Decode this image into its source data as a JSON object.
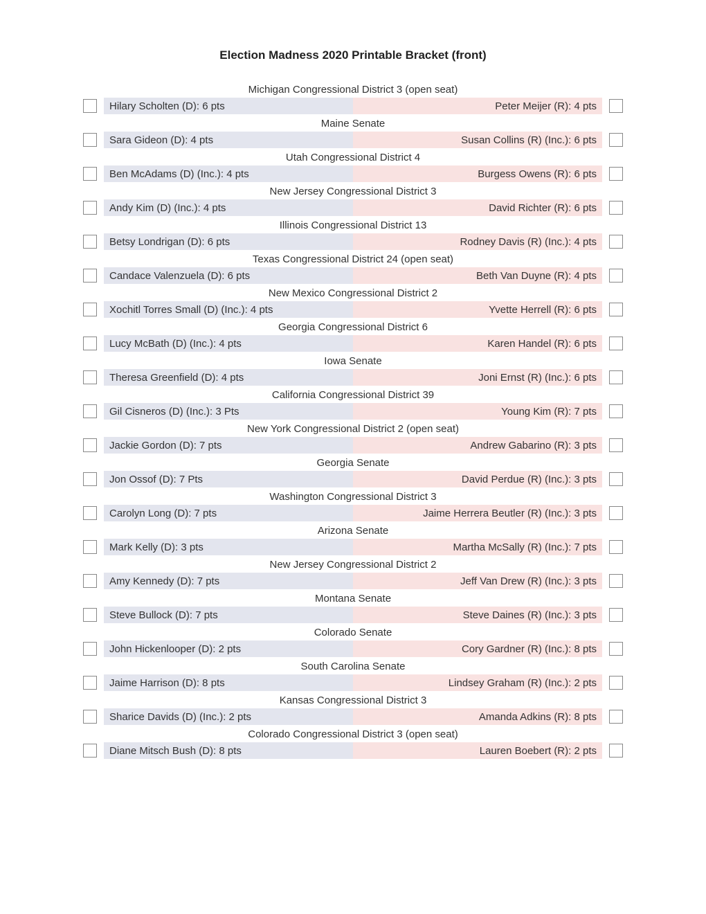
{
  "title": "Election Madness 2020 Printable Bracket (front)",
  "colors": {
    "democrat_bg": "#e3e5ee",
    "republican_bg": "#f9e2e1",
    "background": "#ffffff",
    "text": "#333333",
    "checkbox_border": "#888888"
  },
  "races": [
    {
      "name": "Michigan Congressional District 3 (open seat)",
      "left": "Hilary Scholten (D): 6 pts",
      "right": "Peter Meijer (R): 4 pts"
    },
    {
      "name": "Maine Senate",
      "left": "Sara Gideon (D): 4 pts",
      "right": "Susan Collins (R) (Inc.): 6 pts"
    },
    {
      "name": "Utah Congressional District 4",
      "left": "Ben McAdams (D) (Inc.): 4 pts",
      "right": "Burgess Owens (R): 6 pts"
    },
    {
      "name": "New Jersey Congressional District 3",
      "left": "Andy Kim (D) (Inc.): 4 pts",
      "right": "David Richter (R): 6 pts"
    },
    {
      "name": "Illinois Congressional District 13",
      "left": "Betsy Londrigan (D): 6 pts",
      "right": "Rodney Davis (R) (Inc.): 4 pts"
    },
    {
      "name": "Texas Congressional District 24 (open seat)",
      "left": "Candace Valenzuela (D): 6 pts",
      "right": "Beth Van Duyne (R): 4 pts"
    },
    {
      "name": "New Mexico Congressional District 2",
      "left": "Xochitl Torres Small (D) (Inc.): 4 pts",
      "right": "Yvette Herrell (R): 6 pts"
    },
    {
      "name": "Georgia Congressional District 6",
      "left": "Lucy McBath (D) (Inc.): 4 pts",
      "right": "Karen Handel (R): 6 pts"
    },
    {
      "name": "Iowa Senate",
      "left": "Theresa Greenfield (D): 4 pts",
      "right": "Joni Ernst (R) (Inc.): 6 pts"
    },
    {
      "name": "California Congressional District 39",
      "left": "Gil Cisneros (D) (Inc.): 3 Pts",
      "right": "Young Kim (R): 7 pts"
    },
    {
      "name": "New York Congressional District 2 (open seat)",
      "left": "Jackie Gordon (D): 7 pts",
      "right": "Andrew Gabarino (R): 3 pts"
    },
    {
      "name": "Georgia Senate",
      "left": "Jon Ossof (D): 7 Pts",
      "right": "David Perdue (R) (Inc.): 3 pts"
    },
    {
      "name": "Washington Congressional District 3",
      "left": "Carolyn Long (D): 7 pts",
      "right": "Jaime Herrera Beutler (R) (Inc.): 3 pts"
    },
    {
      "name": "Arizona Senate",
      "left": "Mark Kelly (D): 3 pts",
      "right": "Martha McSally (R) (Inc.): 7 pts"
    },
    {
      "name": "New Jersey Congressional District 2",
      "left": "Amy Kennedy (D): 7 pts",
      "right": "Jeff Van Drew (R) (Inc.): 3 pts"
    },
    {
      "name": "Montana Senate",
      "left": "Steve Bullock (D): 7 pts",
      "right": "Steve Daines (R) (Inc.): 3 pts"
    },
    {
      "name": "Colorado Senate",
      "left": "John Hickenlooper (D): 2 pts",
      "right": "Cory Gardner (R) (Inc.): 8 pts"
    },
    {
      "name": "South Carolina Senate",
      "left": "Jaime Harrison (D): 8 pts",
      "right": "Lindsey Graham (R) (Inc.): 2 pts"
    },
    {
      "name": "Kansas Congressional District 3",
      "left": "Sharice Davids (D) (Inc.): 2 pts",
      "right": "Amanda Adkins (R): 8 pts"
    },
    {
      "name": "Colorado Congressional District 3 (open seat)",
      "left": "Diane Mitsch Bush (D): 8 pts",
      "right": "Lauren Boebert (R): 2 pts"
    }
  ]
}
